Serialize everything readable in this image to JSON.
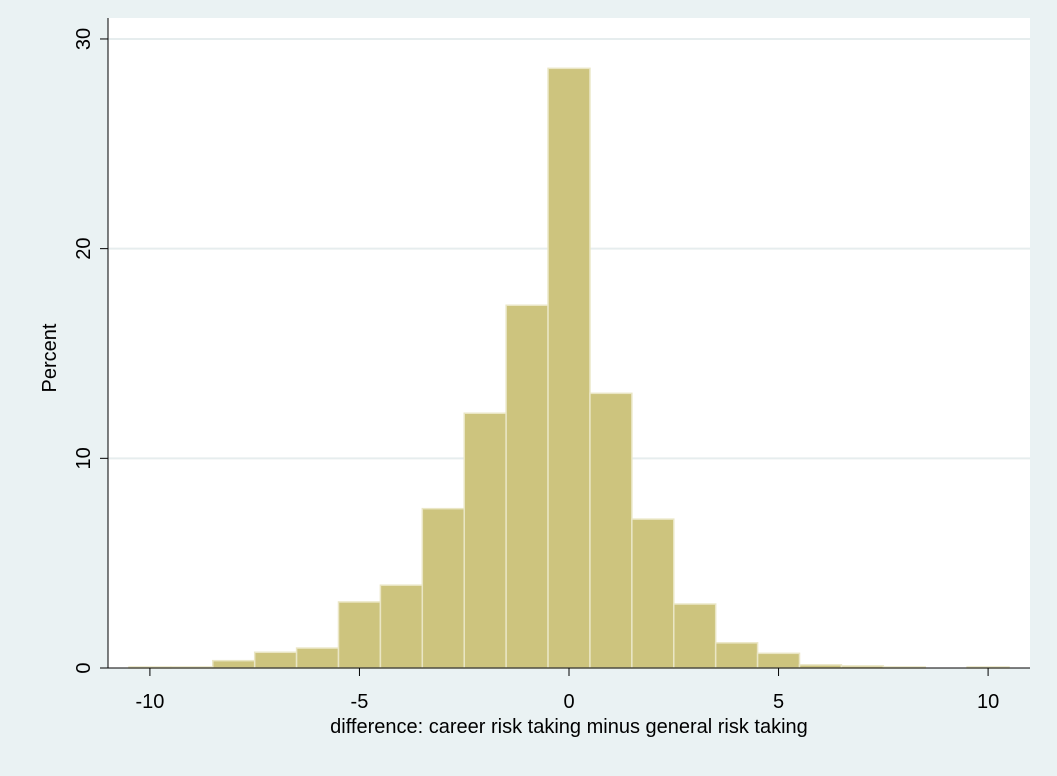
{
  "chart_data": {
    "type": "bar",
    "xlabel": "difference: career risk taking minus general risk taking",
    "ylabel": "Percent",
    "xlim": [
      -11,
      11
    ],
    "ylim": [
      0,
      31
    ],
    "xticks": [
      -10,
      -5,
      0,
      5,
      10
    ],
    "yticks": [
      0,
      10,
      20,
      30
    ],
    "bin_width": 1,
    "grid": true,
    "bar_color": "#cdc47e",
    "bar_edge_color": "#eae6c5",
    "plot_background": "#ffffff",
    "page_background": "#eaf2f3",
    "bins": [
      {
        "center": -10,
        "value": 0.05
      },
      {
        "center": -9,
        "value": 0.05
      },
      {
        "center": -8,
        "value": 0.35
      },
      {
        "center": -7,
        "value": 0.75
      },
      {
        "center": -6,
        "value": 0.95
      },
      {
        "center": -5,
        "value": 3.15
      },
      {
        "center": -4,
        "value": 3.95
      },
      {
        "center": -3,
        "value": 7.6
      },
      {
        "center": -2,
        "value": 12.15
      },
      {
        "center": -1,
        "value": 17.3
      },
      {
        "center": 0,
        "value": 28.6
      },
      {
        "center": 1,
        "value": 13.1
      },
      {
        "center": 2,
        "value": 7.1
      },
      {
        "center": 3,
        "value": 3.05
      },
      {
        "center": 4,
        "value": 1.2
      },
      {
        "center": 5,
        "value": 0.7
      },
      {
        "center": 6,
        "value": 0.15
      },
      {
        "center": 7,
        "value": 0.1
      },
      {
        "center": 8,
        "value": 0.05
      },
      {
        "center": 10,
        "value": 0.05
      }
    ]
  }
}
